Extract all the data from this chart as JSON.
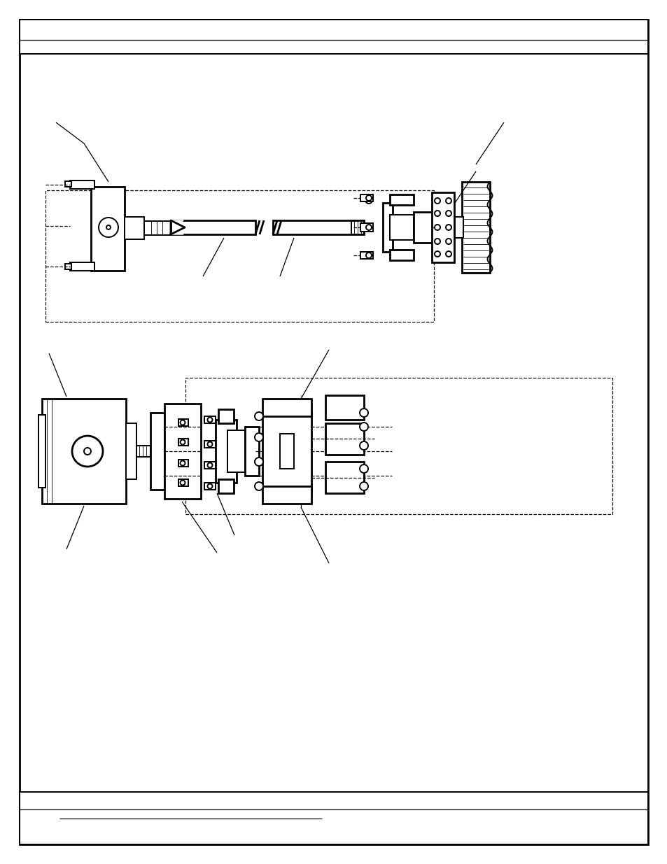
{
  "bg_color": "#ffffff",
  "line_color": "#000000",
  "lw_thick": 2.0,
  "lw_med": 1.4,
  "lw_thin": 0.9,
  "lw_hair": 0.6
}
